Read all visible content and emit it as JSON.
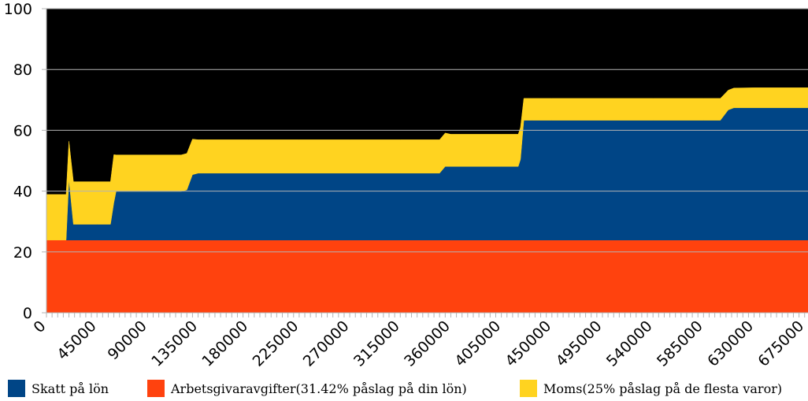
{
  "chart_data": {
    "type": "area",
    "stacked": true,
    "background_color": "#000000",
    "grid": true,
    "legend_position": "bottom",
    "ylim": [
      0,
      100
    ],
    "y_ticks": [
      "0",
      "20",
      "40",
      "60",
      "80",
      "100"
    ],
    "x_tick_labels": [
      "0",
      "45000",
      "90000",
      "135000",
      "180000",
      "225000",
      "270000",
      "315000",
      "360000",
      "405000",
      "450000",
      "495000",
      "540000",
      "585000",
      "630000",
      "675000"
    ],
    "x_tick_values": [
      0,
      45000,
      90000,
      135000,
      180000,
      225000,
      270000,
      315000,
      360000,
      405000,
      450000,
      495000,
      540000,
      585000,
      630000,
      675000
    ],
    "xlim": [
      0,
      678000
    ],
    "x": [
      0,
      14000,
      17500,
      20000,
      24000,
      45000,
      57000,
      60000,
      62000,
      90000,
      120000,
      125000,
      130000,
      135000,
      140000,
      180000,
      225000,
      270000,
      315000,
      350000,
      355000,
      360000,
      405000,
      420000,
      422000,
      425000,
      432000,
      450000,
      540000,
      585000,
      600000,
      607000,
      612000,
      630000,
      678000
    ],
    "series": [
      {
        "name": "Arbetsgivaravgifter(31.42% påslag på din lön)",
        "color": "#ff420e",
        "values": [
          23.9,
          23.9,
          23.9,
          23.9,
          23.9,
          23.9,
          23.9,
          23.9,
          23.9,
          23.9,
          23.9,
          23.9,
          23.9,
          23.9,
          23.9,
          23.9,
          23.9,
          23.9,
          23.9,
          23.9,
          23.9,
          23.9,
          23.9,
          23.9,
          23.9,
          23.9,
          23.9,
          23.9,
          23.9,
          23.9,
          23.9,
          23.9,
          23.9,
          23.9,
          23.9
        ]
      },
      {
        "name": "Skatt på lön",
        "color": "#004586",
        "values": [
          0,
          0,
          0,
          20,
          5.2,
          5.2,
          5.2,
          12.3,
          16,
          16,
          16,
          16.5,
          21.5,
          22,
          22,
          22,
          22,
          22,
          22,
          22,
          24.2,
          24.2,
          24.2,
          24.2,
          26.5,
          39.4,
          39.4,
          39.4,
          39.4,
          39.4,
          39.4,
          42.8,
          43.5,
          43.5,
          43.5
        ]
      },
      {
        "name": "Moms(25% påslag på de flesta varor)",
        "color": "#ffd320",
        "values": [
          15,
          15,
          15,
          12.5,
          14,
          14,
          14,
          15.8,
          12,
          12,
          12,
          12,
          11.7,
          11,
          11,
          11,
          11,
          11,
          11,
          11,
          11,
          10.6,
          10.6,
          10.6,
          10.5,
          7.2,
          7.2,
          7.2,
          7.2,
          7.2,
          7.2,
          6.5,
          6.5,
          6.6,
          6.6
        ]
      }
    ]
  },
  "legend": [
    {
      "label": "Skatt på lön",
      "color": "#004586"
    },
    {
      "label": "Arbetsgivaravgifter(31.42% påslag på din lön)",
      "color": "#ff420e"
    },
    {
      "label": "Moms(25% påslag på de flesta varor)",
      "color": "#ffd320"
    }
  ]
}
